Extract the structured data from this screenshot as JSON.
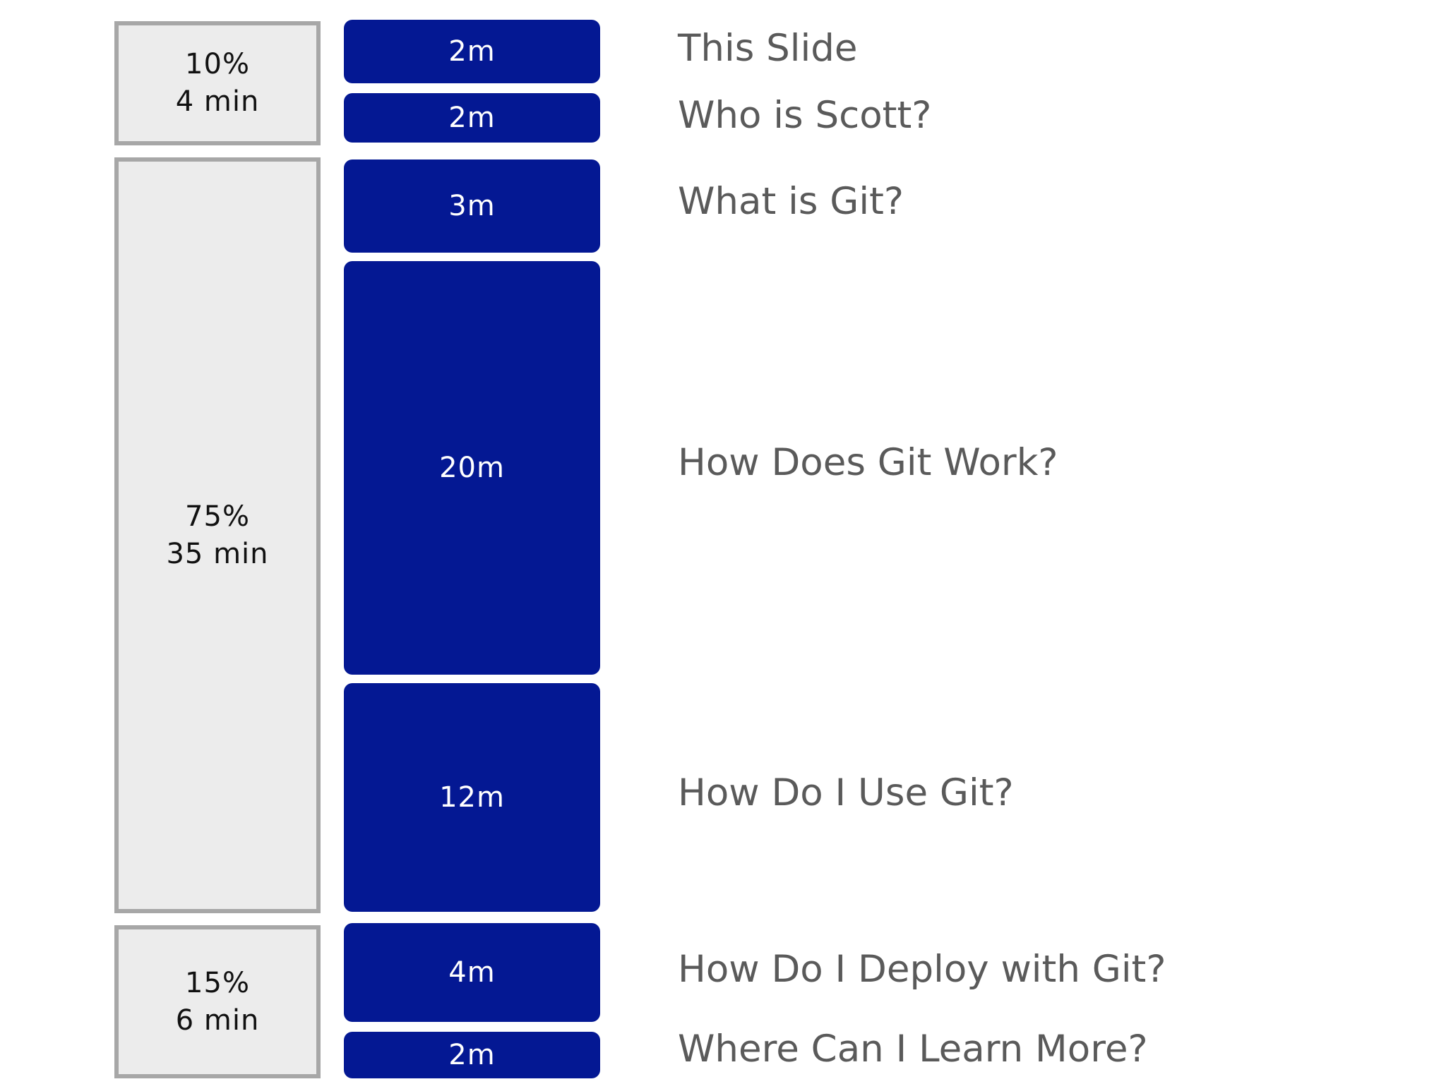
{
  "sections": [
    {
      "percent": "10%",
      "minutes": "4 min"
    },
    {
      "percent": "75%",
      "minutes": "35 min"
    },
    {
      "percent": "15%",
      "minutes": "6 min"
    }
  ],
  "items": [
    {
      "duration": "2m",
      "topic": "This Slide"
    },
    {
      "duration": "2m",
      "topic": "Who is Scott?"
    },
    {
      "duration": "3m",
      "topic": "What is Git?"
    },
    {
      "duration": "20m",
      "topic": "How Does Git Work?"
    },
    {
      "duration": "12m",
      "topic": "How Do I Use Git?"
    },
    {
      "duration": "4m",
      "topic": "How Do I Deploy with Git?"
    },
    {
      "duration": "2m",
      "topic": "Where Can I Learn More?"
    }
  ],
  "colors": {
    "item_fill": "#041893",
    "section_fill": "#ececec",
    "section_border": "#a7a7a7",
    "topic_text": "#5a5a5a"
  }
}
